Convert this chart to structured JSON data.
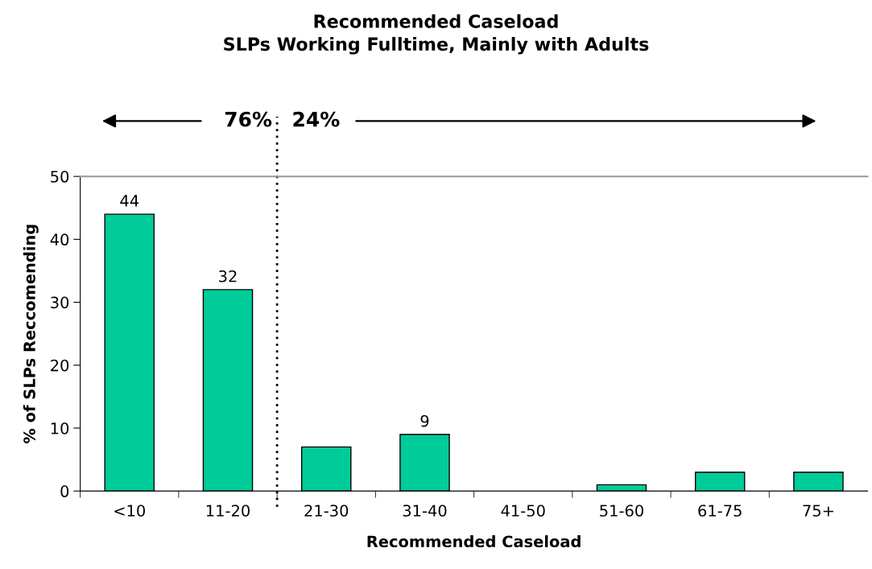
{
  "chart_data": {
    "type": "bar",
    "title": "Recommended Caseload",
    "subtitle": "SLPs Working Fulltime, Mainly with Adults",
    "xlabel": "Recommended Caseload",
    "ylabel": "% of SLPs Reccomending",
    "categories": [
      "<10",
      "11-20",
      "21-30",
      "31-40",
      "41-50",
      "51-60",
      "61-75",
      "75+"
    ],
    "values": [
      44,
      32,
      7,
      9,
      0,
      1,
      3,
      3
    ],
    "value_labels": [
      "44",
      "32",
      null,
      "9",
      null,
      null,
      null,
      null
    ],
    "color": "#00cc99",
    "ylim": [
      0,
      50
    ],
    "yticks": [
      0,
      10,
      20,
      30,
      40,
      50
    ],
    "grid": false,
    "annotations": [
      "76%",
      "24%"
    ]
  }
}
